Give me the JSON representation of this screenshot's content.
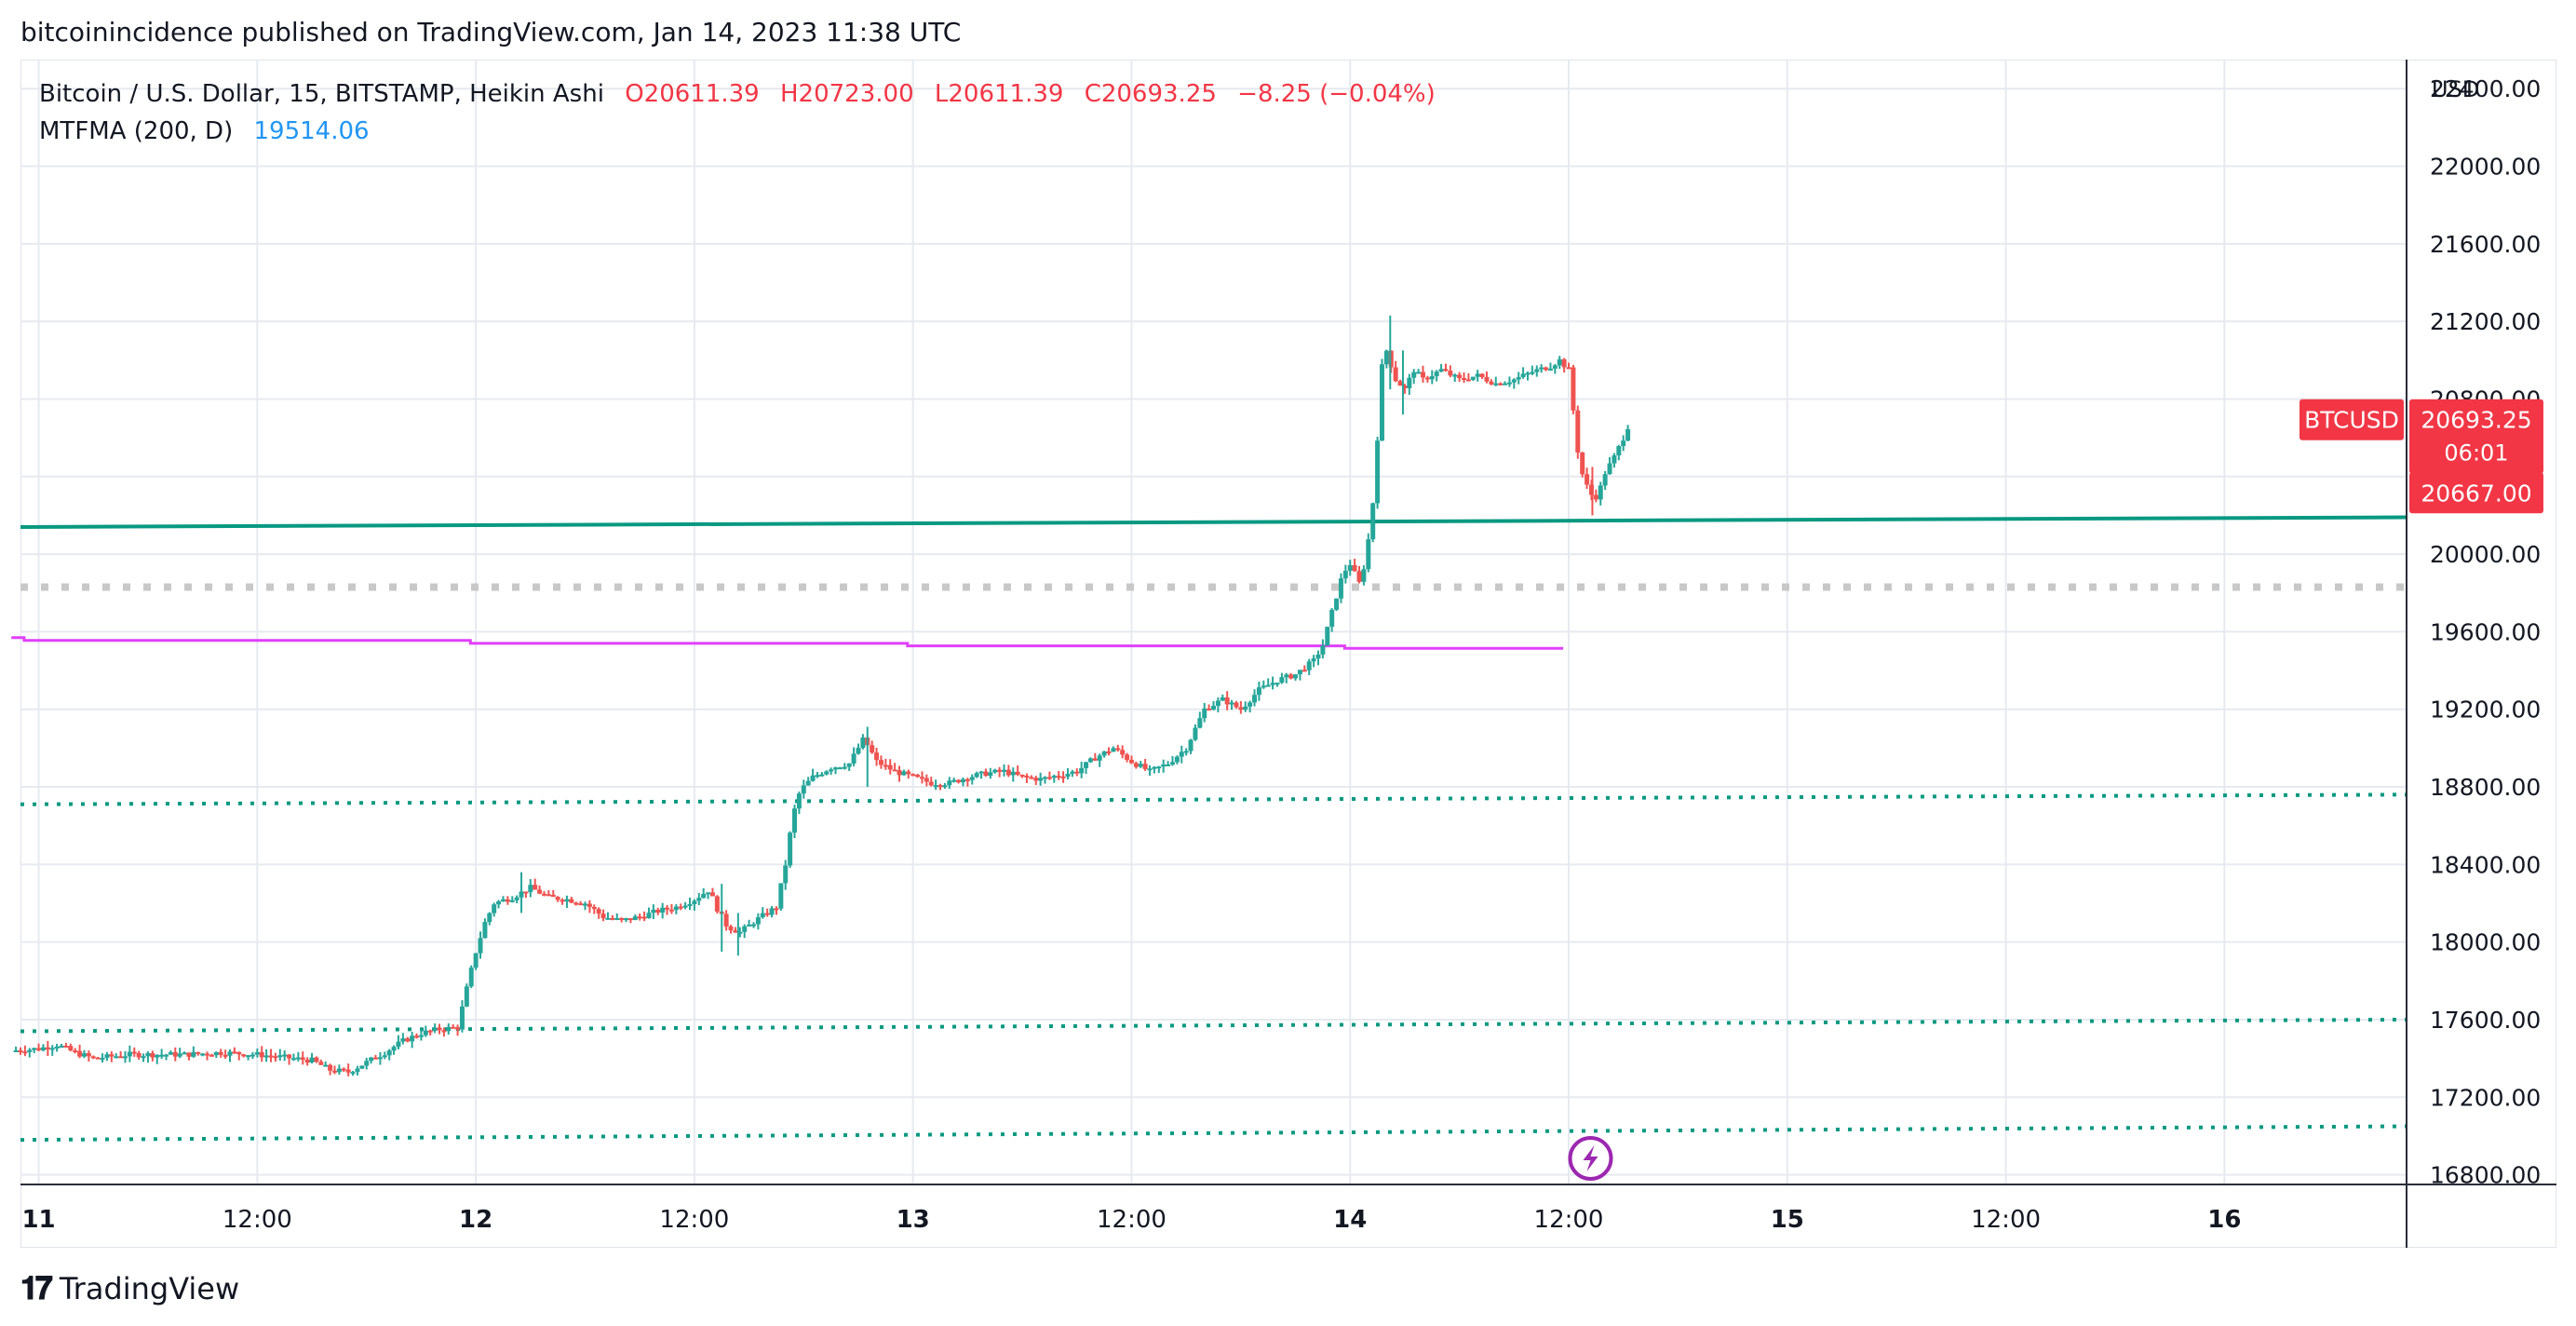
{
  "header": {
    "published_line": "bitcoinincidence published on TradingView.com, Jan 14, 2023 11:38 UTC"
  },
  "legend": {
    "symbol": "Bitcoin / U.S. Dollar, 15, BITSTAMP, Heikin Ashi",
    "open": "O20611.39",
    "high": "H20723.00",
    "low": "L20611.39",
    "close": "C20693.25",
    "change": "−8.25 (−0.04%)",
    "indicator": "MTFMA (200, D)",
    "indicator_value": "19514.06"
  },
  "price_tags": {
    "symbol_tag": "BTCUSD",
    "last_price": "20693.25",
    "countdown": "06:01",
    "line_price": "20667.00"
  },
  "footer": {
    "brand": "TradingView"
  },
  "colors": {
    "up": "#26a69a",
    "down": "#ef5350",
    "ma": "#e040fb",
    "hline": "#089981",
    "grid": "#e6eaf0",
    "gray_dot": "#c8c8c8",
    "tag": "#f23645",
    "bolt": "#9c27b0"
  },
  "icons": {
    "bolt": "lightning-icon",
    "logo": "tradingview-logo-icon"
  },
  "chart_data": {
    "type": "candlestick",
    "style": "Heikin Ashi",
    "interval": "15",
    "currency_label": "USD",
    "ylim": [
      16750,
      22550
    ],
    "y_ticks": [
      16800,
      17200,
      17600,
      18000,
      18400,
      18800,
      19200,
      19600,
      20000,
      20400,
      20800,
      21200,
      21600,
      22000,
      22400
    ],
    "y_tick_labels": [
      "16800.00",
      "17200.00",
      "17600.00",
      "18000.00",
      "18400.00",
      "18800.00",
      "19200.00",
      "19600.00",
      "20000.00",
      "20400.00",
      "20800.00",
      "21200.00",
      "21600.00",
      "22000.00",
      "22400.00"
    ],
    "x_hours_range": [
      -1.0,
      130.0
    ],
    "x_ticks": [
      {
        "hours": 0,
        "label": "11"
      },
      {
        "hours": 12,
        "label": "12:00"
      },
      {
        "hours": 24,
        "label": "12"
      },
      {
        "hours": 36,
        "label": "12:00"
      },
      {
        "hours": 48,
        "label": "13"
      },
      {
        "hours": 60,
        "label": "12:00"
      },
      {
        "hours": 72,
        "label": "14"
      },
      {
        "hours": 84,
        "label": "12:00"
      },
      {
        "hours": 96,
        "label": "15"
      },
      {
        "hours": 108,
        "label": "12:00"
      },
      {
        "hours": 120,
        "label": "16"
      }
    ],
    "price_path": [
      [
        -1.5,
        17440
      ],
      [
        0,
        17450
      ],
      [
        1,
        17470
      ],
      [
        2,
        17430
      ],
      [
        3,
        17400
      ],
      [
        5,
        17420
      ],
      [
        8,
        17420
      ],
      [
        10,
        17430
      ],
      [
        12,
        17420
      ],
      [
        14,
        17400
      ],
      [
        15,
        17390
      ],
      [
        16,
        17340
      ],
      [
        17,
        17330
      ],
      [
        18,
        17380
      ],
      [
        19,
        17430
      ],
      [
        20,
        17490
      ],
      [
        21,
        17530
      ],
      [
        22,
        17550
      ],
      [
        23,
        17560
      ],
      [
        23.6,
        17800
      ],
      [
        24,
        17950
      ],
      [
        24.5,
        18100
      ],
      [
        25,
        18200
      ],
      [
        26,
        18230
      ],
      [
        27,
        18280
      ],
      [
        28,
        18230
      ],
      [
        29,
        18220
      ],
      [
        30,
        18200
      ],
      [
        31,
        18130
      ],
      [
        32,
        18110
      ],
      [
        33,
        18130
      ],
      [
        34,
        18160
      ],
      [
        35,
        18180
      ],
      [
        36,
        18220
      ],
      [
        36.8,
        18270
      ],
      [
        37.2,
        18180
      ],
      [
        37.8,
        18080
      ],
      [
        38.5,
        18050
      ],
      [
        39.5,
        18120
      ],
      [
        40.5,
        18180
      ],
      [
        41,
        18400
      ],
      [
        41.4,
        18650
      ],
      [
        41.8,
        18780
      ],
      [
        42.5,
        18850
      ],
      [
        43.5,
        18900
      ],
      [
        44.5,
        18920
      ],
      [
        45.3,
        19050
      ],
      [
        46,
        18930
      ],
      [
        47,
        18880
      ],
      [
        48,
        18850
      ],
      [
        49,
        18820
      ],
      [
        50,
        18820
      ],
      [
        51,
        18850
      ],
      [
        52,
        18870
      ],
      [
        53,
        18880
      ],
      [
        54,
        18850
      ],
      [
        55,
        18840
      ],
      [
        56,
        18860
      ],
      [
        57,
        18880
      ],
      [
        58,
        18950
      ],
      [
        59,
        19000
      ],
      [
        60,
        18930
      ],
      [
        61,
        18880
      ],
      [
        62,
        18920
      ],
      [
        63,
        19000
      ],
      [
        64,
        19200
      ],
      [
        65,
        19250
      ],
      [
        66,
        19200
      ],
      [
        67,
        19300
      ],
      [
        68,
        19350
      ],
      [
        69,
        19380
      ],
      [
        70,
        19450
      ],
      [
        70.5,
        19530
      ],
      [
        71,
        19700
      ],
      [
        71.6,
        19900
      ],
      [
        72,
        19950
      ],
      [
        72.5,
        19850
      ],
      [
        72.8,
        19950
      ],
      [
        73.2,
        20200
      ],
      [
        73.5,
        20600
      ],
      [
        73.7,
        20950
      ],
      [
        74,
        21050
      ],
      [
        74.5,
        20900
      ],
      [
        75,
        20850
      ],
      [
        75.5,
        20950
      ],
      [
        76,
        20900
      ],
      [
        77,
        20950
      ],
      [
        78,
        20900
      ],
      [
        79,
        20920
      ],
      [
        80,
        20880
      ],
      [
        81,
        20900
      ],
      [
        82,
        20940
      ],
      [
        83,
        20970
      ],
      [
        83.5,
        21000
      ],
      [
        84,
        20950
      ],
      [
        84.3,
        20700
      ],
      [
        84.6,
        20450
      ],
      [
        85,
        20350
      ],
      [
        85.4,
        20280
      ],
      [
        85.7,
        20330
      ],
      [
        86,
        20420
      ],
      [
        86.5,
        20500
      ],
      [
        87,
        20600
      ],
      [
        87.4,
        20693
      ]
    ],
    "spikes": [
      {
        "hours": 74.2,
        "high": 21230,
        "low": 20850
      },
      {
        "hours": 74.9,
        "high": 21050,
        "low": 20720
      },
      {
        "hours": 45.5,
        "high": 19110,
        "low": 18800
      },
      {
        "hours": 37.5,
        "high": 18300,
        "low": 17950
      },
      {
        "hours": 38.4,
        "high": 18150,
        "low": 17930
      },
      {
        "hours": 26.5,
        "high": 18360,
        "low": 18150
      },
      {
        "hours": 85.3,
        "high": 20450,
        "low": 20200
      }
    ],
    "ma_series": {
      "name": "MTFMA (200, D)",
      "steps": [
        [
          -1.5,
          19570
        ],
        [
          -0.8,
          19570
        ],
        [
          -0.8,
          19555
        ],
        [
          23.7,
          19555
        ],
        [
          23.7,
          19540
        ],
        [
          47.7,
          19540
        ],
        [
          47.7,
          19527
        ],
        [
          71.7,
          19527
        ],
        [
          71.7,
          19514
        ],
        [
          83.7,
          19514
        ]
      ]
    },
    "horizontal_lines": [
      {
        "style": "solid",
        "y_start": 20140,
        "y_end": 20190
      },
      {
        "style": "dotted-gray",
        "y": 19830
      },
      {
        "style": "dotted",
        "y_start": 18710,
        "y_end": 18760
      },
      {
        "style": "dotted",
        "y_start": 17540,
        "y_end": 17600
      },
      {
        "style": "dotted",
        "y_start": 16980,
        "y_end": 17050
      }
    ]
  }
}
